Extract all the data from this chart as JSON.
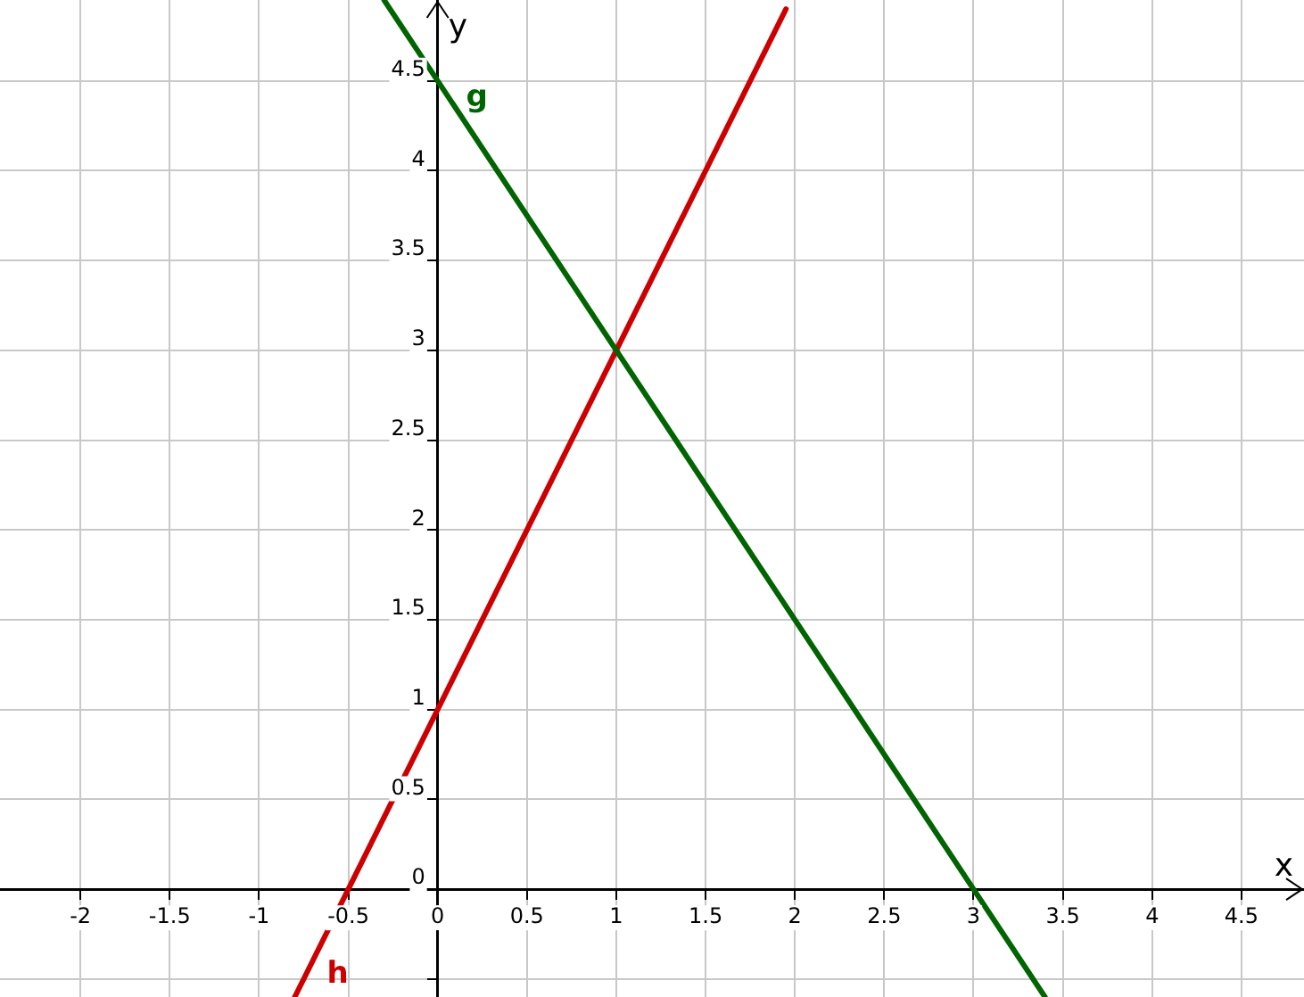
{
  "chart_data": {
    "type": "line",
    "xlabel": "x",
    "ylabel": "y",
    "xlim": [
      -2.45,
      4.85
    ],
    "ylim": [
      -0.6,
      4.95
    ],
    "xticks": [
      -2,
      -1.5,
      -1,
      -0.5,
      0,
      0.5,
      1,
      1.5,
      2,
      2.5,
      3,
      3.5,
      4,
      4.5
    ],
    "yticks": [
      {
        "value": -0.5,
        "label": null
      },
      0,
      0.5,
      1,
      1.5,
      2,
      2.5,
      3,
      3.5,
      4,
      4.5
    ],
    "grid": true,
    "legend": false,
    "marker": "none",
    "line_style": "solid",
    "series": [
      {
        "name": "g",
        "color": "#006400",
        "x": [
          -0.3,
          0,
          1,
          3,
          3.4
        ],
        "values": [
          4.95,
          4.5,
          3,
          0,
          -0.6
        ]
      },
      {
        "name": "h",
        "color": "#cc0000",
        "x": [
          -0.8,
          -0.5,
          1,
          1.95
        ],
        "values": [
          -0.6,
          0,
          3,
          4.9
        ]
      }
    ]
  }
}
